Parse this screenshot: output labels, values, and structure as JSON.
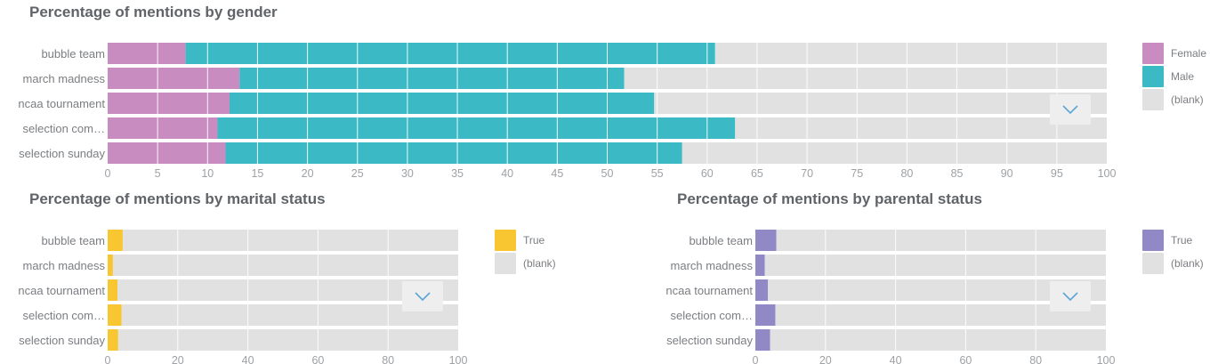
{
  "chart_data": [
    {
      "id": "gender",
      "type": "bar",
      "orientation": "horizontal",
      "stacked": true,
      "title": "Percentage of mentions by gender",
      "categories": [
        "bubble team",
        "march madness",
        "ncaa tournament",
        "selection com…",
        "selection sunday"
      ],
      "series": [
        {
          "name": "Female",
          "color": "#c98cc1",
          "values": [
            7.8,
            13.2,
            12.2,
            11.0,
            11.8
          ]
        },
        {
          "name": "Male",
          "color": "#3bbac6",
          "values": [
            53.0,
            38.5,
            42.5,
            51.8,
            45.7
          ]
        },
        {
          "name": "(blank)",
          "color": "#e1e1e1",
          "values": [
            39.2,
            48.3,
            45.3,
            37.2,
            42.5
          ]
        }
      ],
      "xlim": [
        0,
        100
      ],
      "xticks": [
        0,
        5,
        10,
        15,
        20,
        25,
        30,
        35,
        40,
        45,
        50,
        55,
        60,
        65,
        70,
        75,
        80,
        85,
        90,
        95,
        100
      ],
      "legend_position": "right"
    },
    {
      "id": "marital",
      "type": "bar",
      "orientation": "horizontal",
      "stacked": true,
      "title": "Percentage of mentions by marital status",
      "categories": [
        "bubble team",
        "march madness",
        "ncaa tournament",
        "selection com…",
        "selection sunday"
      ],
      "series": [
        {
          "name": "True",
          "color": "#f8c630",
          "values": [
            4.3,
            1.5,
            2.8,
            4.0,
            3.0
          ]
        },
        {
          "name": "(blank)",
          "color": "#e1e1e1",
          "values": [
            95.7,
            98.5,
            97.2,
            96.0,
            97.0
          ]
        }
      ],
      "xlim": [
        0,
        100
      ],
      "xticks": [
        0,
        20,
        40,
        60,
        80,
        100
      ],
      "legend_position": "right"
    },
    {
      "id": "parental",
      "type": "bar",
      "orientation": "horizontal",
      "stacked": true,
      "title": "Percentage of mentions by parental status",
      "categories": [
        "bubble team",
        "march madness",
        "ncaa tournament",
        "selection com…",
        "selection sunday"
      ],
      "series": [
        {
          "name": "True",
          "color": "#9189c6",
          "values": [
            6.0,
            2.7,
            3.6,
            5.7,
            4.2
          ]
        },
        {
          "name": "(blank)",
          "color": "#e1e1e1",
          "values": [
            94.0,
            97.3,
            96.4,
            94.3,
            95.8
          ]
        }
      ],
      "xlim": [
        0,
        100
      ],
      "xticks": [
        0,
        20,
        40,
        60,
        80,
        100
      ],
      "legend_position": "right"
    }
  ],
  "icons": {
    "expand": "chevron-down-icon"
  },
  "colors": {
    "accent": "#5aa6d8",
    "button_bg": "#eeeeee"
  }
}
